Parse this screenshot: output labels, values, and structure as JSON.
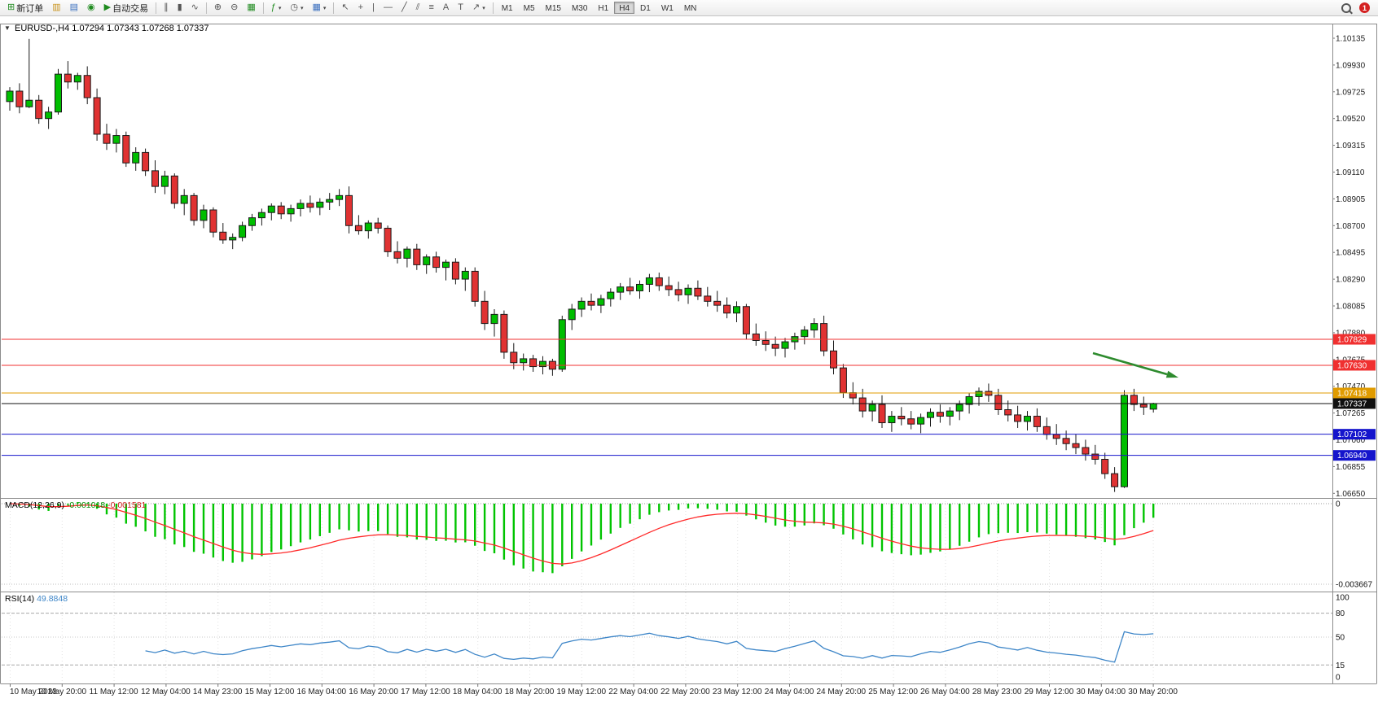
{
  "toolbar": {
    "new_order_label": "新订单",
    "autotrading_label": "自动交易",
    "timeframes": [
      "M1",
      "M5",
      "M15",
      "M30",
      "H1",
      "H4",
      "D1",
      "W1",
      "MN"
    ],
    "active_timeframe": "H4",
    "notification_count": "1"
  },
  "chart_header": {
    "symbol_period": "EURUSD-,H4",
    "open": "1.07294",
    "high": "1.07343",
    "low": "1.07268",
    "close": "1.07337"
  },
  "price_axis_labels": [
    "1.10135",
    "1.09930",
    "1.09725",
    "1.09520",
    "1.09315",
    "1.09110",
    "1.08905",
    "1.08700",
    "1.08495",
    "1.08290",
    "1.08085",
    "1.07880",
    "1.07675",
    "1.07470",
    "1.07265",
    "1.07060",
    "1.06855",
    "1.06650"
  ],
  "time_axis_labels": [
    "10 May 2023",
    "10 May 20:00",
    "11 May 12:00",
    "12 May 04:00",
    "14 May 23:00",
    "15 May 12:00",
    "16 May 04:00",
    "16 May 20:00",
    "17 May 12:00",
    "18 May 04:00",
    "18 May 20:00",
    "19 May 12:00",
    "22 May 04:00",
    "22 May 20:00",
    "23 May 12:00",
    "24 May 04:00",
    "24 May 20:00",
    "25 May 12:00",
    "26 May 04:00",
    "28 May 23:00",
    "29 May 12:00",
    "30 May 04:00",
    "30 May 20:00"
  ],
  "macd_panel": {
    "title": "MACD(12,26,9)",
    "value_main": "-0.001018",
    "value_signal": "-0.001581",
    "axis_zero": "0",
    "axis_min": "-0.003667"
  },
  "rsi_panel": {
    "title": "RSI(14)",
    "value": "49.8848",
    "axis_labels": [
      "100",
      "80",
      "50",
      "15",
      "0"
    ]
  },
  "colors": {
    "bull": "#00BE00",
    "bear": "#E03232",
    "outline": "#1A1A1A",
    "frame": "#8c8c8c",
    "grid": "#e2e2e2"
  },
  "chart_data": {
    "type": "candlestick",
    "symbol": "EURUSD",
    "period": "H4",
    "y_top": 1.10135,
    "y_step": 0.00205,
    "horizontal_lines": [
      {
        "price": 1.07829,
        "label": "1.07829",
        "color": "#F03030"
      },
      {
        "price": 1.0763,
        "label": "1.07630",
        "color": "#F03030"
      },
      {
        "price": 1.07418,
        "label": "1.07418",
        "color": "#E09B00"
      },
      {
        "price": 1.07337,
        "label": "1.07337",
        "color": "#101010",
        "is_current_price": true
      },
      {
        "price": 1.07102,
        "label": "1.07102",
        "color": "#1414CC"
      },
      {
        "price": 1.0694,
        "label": "1.06940",
        "color": "#1414CC"
      }
    ],
    "annotations": [
      {
        "type": "arrow",
        "direction": "down-right",
        "color": "#2E8B2E"
      }
    ],
    "macd": {
      "zero_level": 0,
      "min_level": -0.003667,
      "histogram_color": "#00C400",
      "signal_color": "#FF2A2A",
      "params": [
        12,
        26,
        9
      ]
    },
    "rsi": {
      "params": [
        14
      ],
      "levels": [
        80,
        50,
        15
      ],
      "line_color": "#3E86C8",
      "range": [
        0,
        100
      ]
    },
    "candles": [
      [
        1.0965,
        1.0976,
        1.0958,
        1.0973
      ],
      [
        1.0973,
        1.0979,
        1.0956,
        1.0961
      ],
      [
        1.0961,
        1.1013,
        1.096,
        1.0966
      ],
      [
        1.0966,
        1.097,
        1.0948,
        1.0952
      ],
      [
        1.0952,
        1.0961,
        1.0944,
        1.0957
      ],
      [
        1.0957,
        1.099,
        1.0955,
        1.0986
      ],
      [
        1.0986,
        1.0996,
        1.0975,
        1.098
      ],
      [
        1.098,
        1.0987,
        1.0974,
        1.0985
      ],
      [
        1.0985,
        1.0992,
        1.0963,
        1.0968
      ],
      [
        1.0968,
        1.0975,
        1.0935,
        1.094
      ],
      [
        1.094,
        1.0948,
        1.0928,
        1.0933
      ],
      [
        1.0933,
        1.0944,
        1.0926,
        1.0939
      ],
      [
        1.0939,
        1.0942,
        1.0915,
        1.0918
      ],
      [
        1.0918,
        1.093,
        1.0912,
        1.0926
      ],
      [
        1.0926,
        1.0929,
        1.0908,
        1.0912
      ],
      [
        1.0912,
        1.092,
        1.0895,
        1.09
      ],
      [
        1.09,
        1.0912,
        1.0894,
        1.0908
      ],
      [
        1.0908,
        1.091,
        1.0883,
        1.0887
      ],
      [
        1.0887,
        1.0898,
        1.0878,
        1.0893
      ],
      [
        1.0893,
        1.0895,
        1.087,
        1.0874
      ],
      [
        1.0874,
        1.0886,
        1.0868,
        1.0882
      ],
      [
        1.0882,
        1.0884,
        1.0861,
        1.0865
      ],
      [
        1.0865,
        1.0872,
        1.0856,
        1.0859
      ],
      [
        1.0859,
        1.0864,
        1.0852,
        1.0861
      ],
      [
        1.0861,
        1.0873,
        1.0858,
        1.087
      ],
      [
        1.087,
        1.0879,
        1.0866,
        1.0876
      ],
      [
        1.0876,
        1.0883,
        1.087,
        1.088
      ],
      [
        1.088,
        1.0887,
        1.0874,
        1.0885
      ],
      [
        1.0885,
        1.0888,
        1.0875,
        1.0879
      ],
      [
        1.0879,
        1.0886,
        1.0873,
        1.0883
      ],
      [
        1.0883,
        1.089,
        1.0877,
        1.0887
      ],
      [
        1.0887,
        1.0893,
        1.088,
        1.0884
      ],
      [
        1.0884,
        1.0891,
        1.0878,
        1.0888
      ],
      [
        1.0888,
        1.0895,
        1.0882,
        1.089
      ],
      [
        1.089,
        1.0898,
        1.0885,
        1.0893
      ],
      [
        1.0893,
        1.09,
        1.0864,
        1.087
      ],
      [
        1.087,
        1.0878,
        1.0863,
        1.0866
      ],
      [
        1.0866,
        1.0874,
        1.086,
        1.0872
      ],
      [
        1.0872,
        1.0876,
        1.0864,
        1.0868
      ],
      [
        1.0868,
        1.087,
        1.0846,
        1.085
      ],
      [
        1.085,
        1.0858,
        1.0841,
        1.0845
      ],
      [
        1.0845,
        1.0854,
        1.0838,
        1.0852
      ],
      [
        1.0852,
        1.0856,
        1.0836,
        1.084
      ],
      [
        1.084,
        1.0848,
        1.0833,
        1.0846
      ],
      [
        1.0846,
        1.085,
        1.0834,
        1.0838
      ],
      [
        1.0838,
        1.0844,
        1.0828,
        1.0842
      ],
      [
        1.0842,
        1.0845,
        1.0825,
        1.0829
      ],
      [
        1.0829,
        1.0838,
        1.082,
        1.0835
      ],
      [
        1.0835,
        1.0838,
        1.0808,
        1.0812
      ],
      [
        1.0812,
        1.082,
        1.079,
        1.0795
      ],
      [
        1.0795,
        1.0806,
        1.0785,
        1.0802
      ],
      [
        1.0802,
        1.0805,
        1.0768,
        1.0773
      ],
      [
        1.0773,
        1.078,
        1.076,
        1.0765
      ],
      [
        1.0765,
        1.0772,
        1.0759,
        1.0768
      ],
      [
        1.0768,
        1.0771,
        1.0758,
        1.0762
      ],
      [
        1.0762,
        1.077,
        1.0756,
        1.0766
      ],
      [
        1.0766,
        1.0768,
        1.0755,
        1.076
      ],
      [
        1.076,
        1.0801,
        1.0758,
        1.0798
      ],
      [
        1.0798,
        1.081,
        1.079,
        1.0806
      ],
      [
        1.0806,
        1.0815,
        1.08,
        1.0812
      ],
      [
        1.0812,
        1.0818,
        1.0805,
        1.0809
      ],
      [
        1.0809,
        1.0817,
        1.0803,
        1.0814
      ],
      [
        1.0814,
        1.0822,
        1.0808,
        1.0819
      ],
      [
        1.0819,
        1.0826,
        1.0813,
        1.0823
      ],
      [
        1.0823,
        1.083,
        1.0817,
        1.082
      ],
      [
        1.082,
        1.0828,
        1.0814,
        1.0825
      ],
      [
        1.0825,
        1.0833,
        1.0819,
        1.083
      ],
      [
        1.083,
        1.0834,
        1.082,
        1.0824
      ],
      [
        1.0824,
        1.0831,
        1.0816,
        1.0821
      ],
      [
        1.0821,
        1.0827,
        1.0812,
        1.0817
      ],
      [
        1.0817,
        1.0825,
        1.081,
        1.0822
      ],
      [
        1.0822,
        1.0828,
        1.0813,
        1.0816
      ],
      [
        1.0816,
        1.0823,
        1.0808,
        1.0812
      ],
      [
        1.0812,
        1.082,
        1.0804,
        1.0809
      ],
      [
        1.0809,
        1.0815,
        1.0799,
        1.0803
      ],
      [
        1.0803,
        1.0812,
        1.0796,
        1.0808
      ],
      [
        1.0808,
        1.081,
        1.0783,
        1.0787
      ],
      [
        1.0787,
        1.0795,
        1.0778,
        1.0782
      ],
      [
        1.0782,
        1.0789,
        1.0774,
        1.0779
      ],
      [
        1.0779,
        1.0785,
        1.077,
        1.0776
      ],
      [
        1.0776,
        1.0784,
        1.0769,
        1.0781
      ],
      [
        1.0781,
        1.0788,
        1.0775,
        1.0785
      ],
      [
        1.0785,
        1.0793,
        1.0779,
        1.079
      ],
      [
        1.079,
        1.0799,
        1.0784,
        1.0795
      ],
      [
        1.0795,
        1.0801,
        1.077,
        1.0774
      ],
      [
        1.0774,
        1.0782,
        1.0756,
        1.0761
      ],
      [
        1.0761,
        1.0764,
        1.0738,
        1.0742
      ],
      [
        1.0742,
        1.075,
        1.0733,
        1.0738
      ],
      [
        1.0738,
        1.0745,
        1.0723,
        1.0728
      ],
      [
        1.0728,
        1.0736,
        1.072,
        1.0733
      ],
      [
        1.0733,
        1.074,
        1.0715,
        1.0719
      ],
      [
        1.0719,
        1.0728,
        1.0712,
        1.0724
      ],
      [
        1.0724,
        1.0731,
        1.0717,
        1.0722
      ],
      [
        1.0722,
        1.0728,
        1.0714,
        1.0718
      ],
      [
        1.0718,
        1.0726,
        1.0711,
        1.0723
      ],
      [
        1.0723,
        1.073,
        1.0716,
        1.0727
      ],
      [
        1.0727,
        1.0733,
        1.0719,
        1.0724
      ],
      [
        1.0724,
        1.0731,
        1.0717,
        1.0728
      ],
      [
        1.0728,
        1.0736,
        1.0721,
        1.0733
      ],
      [
        1.0733,
        1.0742,
        1.0726,
        1.0739
      ],
      [
        1.0739,
        1.0746,
        1.0732,
        1.0743
      ],
      [
        1.0743,
        1.0749,
        1.0735,
        1.074
      ],
      [
        1.074,
        1.0745,
        1.0725,
        1.0729
      ],
      [
        1.0729,
        1.0736,
        1.072,
        1.0725
      ],
      [
        1.0725,
        1.0732,
        1.0715,
        1.072
      ],
      [
        1.072,
        1.0728,
        1.0713,
        1.0724
      ],
      [
        1.0724,
        1.073,
        1.0712,
        1.0716
      ],
      [
        1.0716,
        1.0723,
        1.0706,
        1.071
      ],
      [
        1.071,
        1.0718,
        1.0702,
        1.0707
      ],
      [
        1.0707,
        1.0713,
        1.0698,
        1.0703
      ],
      [
        1.0703,
        1.071,
        1.0695,
        1.07
      ],
      [
        1.07,
        1.0706,
        1.069,
        1.0695
      ],
      [
        1.0695,
        1.0702,
        1.0687,
        1.0691
      ],
      [
        1.0691,
        1.0696,
        1.0676,
        1.068
      ],
      [
        1.068,
        1.0685,
        1.0666,
        1.067
      ],
      [
        1.067,
        1.0744,
        1.0669,
        1.074
      ],
      [
        1.074,
        1.0745,
        1.0728,
        1.0733
      ],
      [
        1.0733,
        1.0739,
        1.0725,
        1.0731
      ],
      [
        1.07294,
        1.07343,
        1.07268,
        1.07337
      ]
    ]
  }
}
